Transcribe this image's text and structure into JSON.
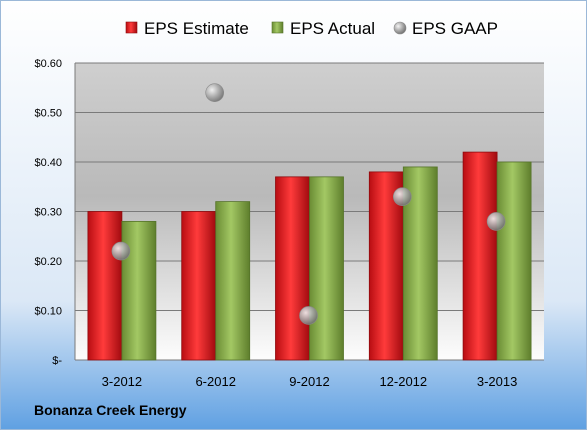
{
  "footer": {
    "company": "Bonanza Creek Energy"
  },
  "chart_data": {
    "type": "bar",
    "categories": [
      "3-2012",
      "6-2012",
      "9-2012",
      "12-2012",
      "3-2013"
    ],
    "series": [
      {
        "name": "EPS Estimate",
        "kind": "bar",
        "color": "#e8171f",
        "values": [
          0.3,
          0.3,
          0.37,
          0.38,
          0.42
        ]
      },
      {
        "name": "EPS Actual",
        "kind": "bar",
        "color": "#8ab04a",
        "values": [
          0.28,
          0.32,
          0.37,
          0.39,
          0.4
        ]
      },
      {
        "name": "EPS GAAP",
        "kind": "scatter",
        "color": "#9a9a9a",
        "values": [
          0.22,
          0.54,
          0.09,
          0.33,
          0.28
        ]
      }
    ],
    "y_ticks": [
      "$-",
      "$0.10",
      "$0.20",
      "$0.30",
      "$0.40",
      "$0.50",
      "$0.60"
    ],
    "ylim": [
      0,
      0.6
    ],
    "grid": true,
    "legend_position": "top"
  }
}
